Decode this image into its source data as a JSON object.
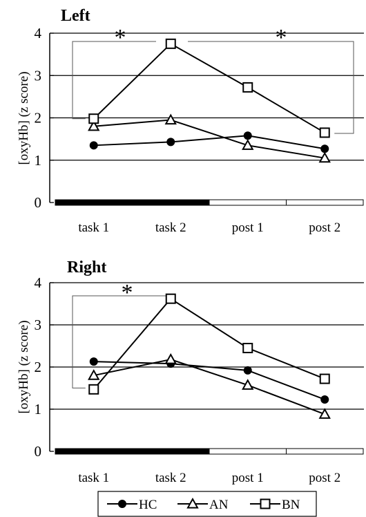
{
  "chart_data": [
    {
      "type": "line",
      "title": "Left",
      "ylabel": "[oxyHb] (z score)",
      "categories": [
        "task 1",
        "task 2",
        "post 1",
        "post 2"
      ],
      "ylim": [
        0,
        4
      ],
      "yticks": [
        "0",
        "1",
        "2",
        "3",
        "4"
      ],
      "grid": true,
      "series": [
        {
          "name": "HC",
          "marker": "filled-circle",
          "values": [
            1.35,
            1.43,
            1.58,
            1.27
          ]
        },
        {
          "name": "AN",
          "marker": "open-triangle",
          "values": [
            1.8,
            1.95,
            1.35,
            1.05
          ]
        },
        {
          "name": "BN",
          "marker": "open-square",
          "values": [
            1.98,
            3.75,
            2.72,
            1.65
          ]
        }
      ],
      "task_bar": [
        {
          "category": "task 1",
          "fill": "#000000"
        },
        {
          "category": "task 2",
          "fill": "#000000"
        },
        {
          "category": "post 1",
          "fill": "#ffffff"
        },
        {
          "category": "post 2",
          "fill": "#ffffff"
        }
      ],
      "significance": [
        {
          "from": "task 1",
          "to": "task 2",
          "label": "*"
        },
        {
          "from": "task 2",
          "to": "post 2",
          "label": "*"
        }
      ]
    },
    {
      "type": "line",
      "title": "Right",
      "ylabel": "[oxyHb] (z score)",
      "categories": [
        "task 1",
        "task 2",
        "post 1",
        "post 2"
      ],
      "ylim": [
        0,
        4
      ],
      "yticks": [
        "0",
        "1",
        "2",
        "3",
        "4"
      ],
      "grid": true,
      "series": [
        {
          "name": "HC",
          "marker": "filled-circle",
          "values": [
            2.13,
            2.08,
            1.92,
            1.23
          ]
        },
        {
          "name": "AN",
          "marker": "open-triangle",
          "values": [
            1.8,
            2.18,
            1.57,
            0.88
          ]
        },
        {
          "name": "BN",
          "marker": "open-square",
          "values": [
            1.47,
            3.62,
            2.45,
            1.72
          ]
        }
      ],
      "task_bar": [
        {
          "category": "task 1",
          "fill": "#000000"
        },
        {
          "category": "task 2",
          "fill": "#000000"
        },
        {
          "category": "post 1",
          "fill": "#ffffff"
        },
        {
          "category": "post 2",
          "fill": "#ffffff"
        }
      ],
      "significance": [
        {
          "from": "task 1",
          "to": "task 2",
          "label": "*"
        }
      ]
    }
  ],
  "legend": {
    "items": [
      {
        "label": "HC",
        "marker": "filled-circle"
      },
      {
        "label": "AN",
        "marker": "open-triangle"
      },
      {
        "label": "BN",
        "marker": "open-square"
      }
    ]
  },
  "colors": {
    "line": "#000000",
    "grid": "#000000",
    "background": "#ffffff"
  }
}
